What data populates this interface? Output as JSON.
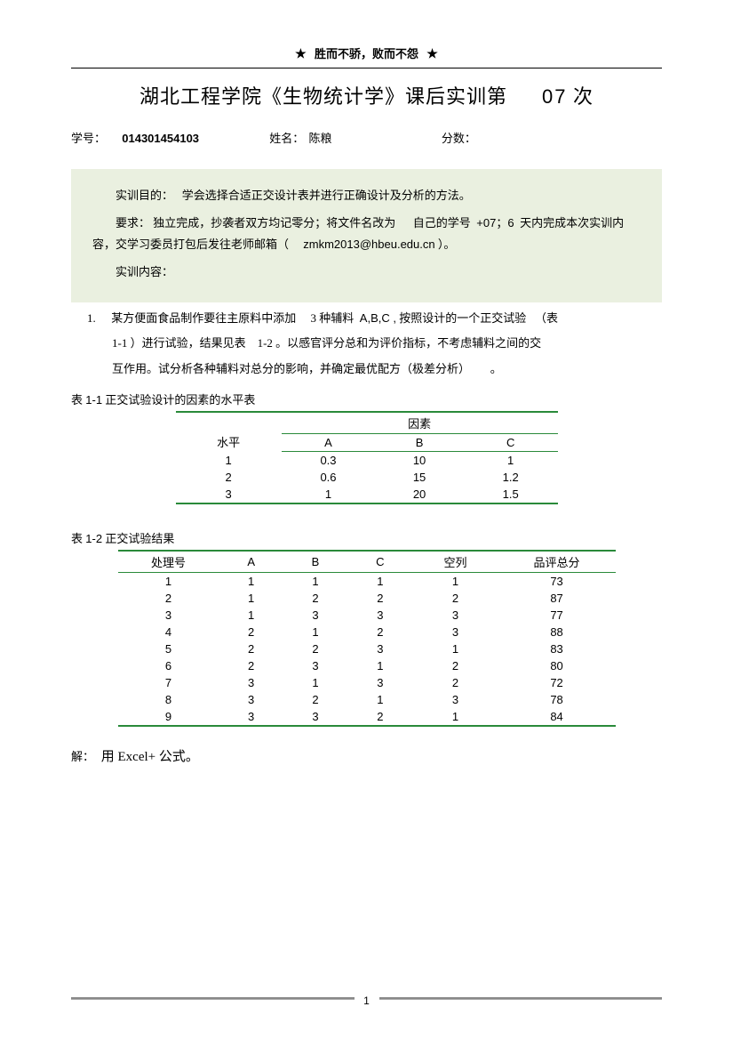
{
  "motto": "胜而不骄，败而不怨",
  "title_prefix": "湖北工程学院《生物统计学》课后实训第",
  "title_num": "07",
  "title_suffix": " 次",
  "meta": {
    "id_label": "学号：",
    "id_value": "014301454103",
    "name_label": "姓名：",
    "name_value": "陈粮",
    "score_label": "分数："
  },
  "block": {
    "purpose_label": "实训目的：",
    "purpose_text": "学会选择合适正交设计表并进行正确设计及分析的方法。",
    "req_label": "要求：",
    "req_text1": "独立完成，抄袭者双方均记零分；将文件名改为",
    "req_text2": "自己的学号",
    "req_text3": "+07；6",
    "req_text4": "天内完成本次实训内容，交学习委员打包后发往老师邮箱（",
    "email": "zmkm2013@hbeu.edu.cn",
    "req_text5": "）。",
    "content_label": "实训内容："
  },
  "problem": {
    "num": "1.",
    "l1a": "某方便面食品制作要往主原料中添加",
    "l1b": "3 种辅料",
    "l1c": "A,B,C ,",
    "l1d": "按照设计的一个正交试验",
    "l1e": "（表",
    "l2a": "1-1 ）进行试验，结果见表",
    "l2b": "1-2 。以感官评分总和为评价指标，不考虑辅料之间的交",
    "l3a": "互作用。试分析各种辅料对总分的影响，并确定最优配方（极差分析）",
    "l3b": "。"
  },
  "table1": {
    "caption_a": "表",
    "caption_b": "1-1",
    "caption_c": "正交试验设计的因素的水平表",
    "h_level": "水平",
    "h_factor": "因素",
    "cols": [
      "A",
      "B",
      "C"
    ],
    "rows": [
      [
        "1",
        "0.3",
        "10",
        "1"
      ],
      [
        "2",
        "0.6",
        "15",
        "1.2"
      ],
      [
        "3",
        "1",
        "20",
        "1.5"
      ]
    ]
  },
  "table2": {
    "caption_a": "表",
    "caption_b": "1-2",
    "caption_c": "正交试验结果",
    "headers": [
      "处理号",
      "A",
      "B",
      "C",
      "空列",
      "品评总分"
    ],
    "rows": [
      [
        "1",
        "1",
        "1",
        "1",
        "1",
        "73"
      ],
      [
        "2",
        "1",
        "2",
        "2",
        "2",
        "87"
      ],
      [
        "3",
        "1",
        "3",
        "3",
        "3",
        "77"
      ],
      [
        "4",
        "2",
        "1",
        "2",
        "3",
        "88"
      ],
      [
        "5",
        "2",
        "2",
        "3",
        "1",
        "83"
      ],
      [
        "6",
        "2",
        "3",
        "1",
        "2",
        "80"
      ],
      [
        "7",
        "3",
        "1",
        "3",
        "2",
        "72"
      ],
      [
        "8",
        "3",
        "2",
        "1",
        "3",
        "78"
      ],
      [
        "9",
        "3",
        "3",
        "2",
        "1",
        "84"
      ]
    ]
  },
  "solution": {
    "label": "解：",
    "text": "用 Excel+ 公式。"
  },
  "page_number": "1",
  "colors": {
    "green_bg": "#eaf0e0",
    "table_border": "#2a8a3a",
    "footer_rule": "#888888"
  }
}
